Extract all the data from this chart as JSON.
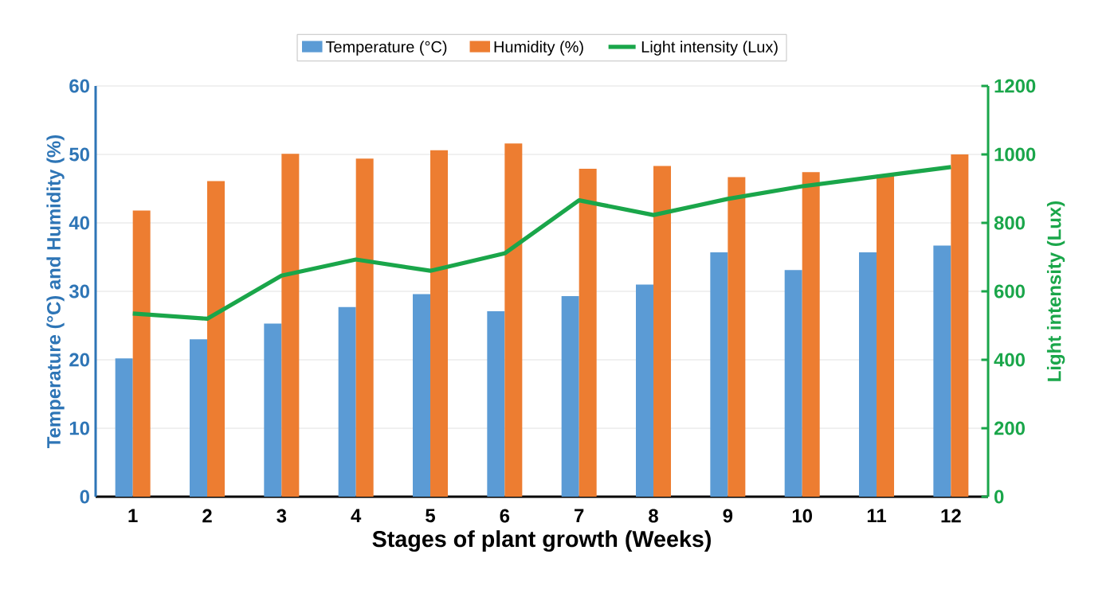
{
  "chart_data": {
    "type": "bar",
    "xlabel": "Stages of plant growth (Weeks)",
    "ylabel": "Temperature (°C) and Humidity (%)",
    "y2label": "Light intensity (Lux)",
    "categories": [
      "1",
      "2",
      "3",
      "4",
      "5",
      "6",
      "7",
      "8",
      "9",
      "10",
      "11",
      "12"
    ],
    "series": [
      {
        "name": "Temperature (°C)",
        "color": "#5b9bd5",
        "values": [
          20.2,
          23,
          25.3,
          27.7,
          29.6,
          27.1,
          29.3,
          31,
          35.7,
          33.1,
          35.7,
          36.7
        ]
      },
      {
        "name": "Humidity (%)",
        "color": "#ed7d31",
        "values": [
          41.8,
          46.1,
          50.1,
          49.4,
          50.6,
          51.6,
          47.9,
          48.3,
          46.7,
          47.4,
          47,
          50
        ]
      },
      {
        "name": "Light intensity (Lux)",
        "type": "line",
        "axis": "y2",
        "color": "#1aa64a",
        "values": [
          535,
          520,
          646,
          693,
          660,
          711,
          866,
          823,
          870,
          907,
          935,
          963
        ]
      }
    ],
    "ylim": [
      0,
      60
    ],
    "yticks": [
      0,
      10,
      20,
      30,
      40,
      50,
      60
    ],
    "y2lim": [
      0,
      1200
    ],
    "y2ticks": [
      0,
      200,
      400,
      600,
      800,
      1000,
      1200
    ],
    "grid": "y",
    "legend": "top"
  }
}
